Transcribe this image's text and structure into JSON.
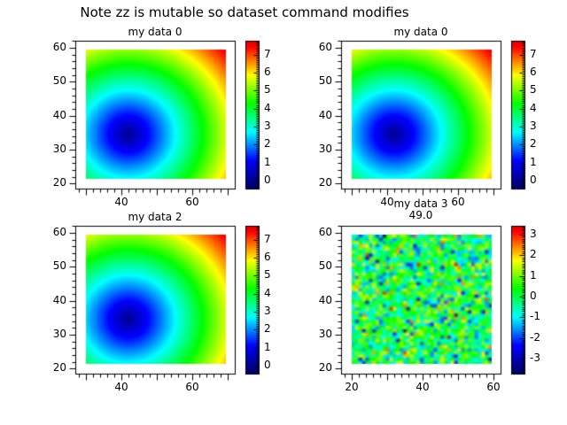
{
  "figure": {
    "title": "Note zz is mutable so dataset command modifies",
    "background": "#ffffff"
  },
  "chart_data": {
    "type": "heatmap",
    "layout": "2x2 grid of image plots, each with its own vertical colorbar, white background, black outward ticks",
    "colormap": {
      "name": "spectrum",
      "stops": [
        "#000064",
        "#0000ff",
        "#00ffff",
        "#00ff00",
        "#ffff00",
        "#ff0000",
        "#640000"
      ],
      "top_fraction": 0.87
    },
    "plots": [
      {
        "id": "plot-top-left",
        "title": "my data 0",
        "x_ticks": {
          "values": [
            30,
            40,
            50,
            60,
            70
          ],
          "labels": [
            "",
            "40",
            "",
            "60",
            ""
          ]
        },
        "y_ticks": {
          "values": [
            60,
            50,
            40,
            30,
            20
          ],
          "labels": [
            "60",
            "50",
            "40",
            "30",
            "20"
          ]
        },
        "x_range": [
          27,
          71.8
        ],
        "y_range": [
          18.4,
          62.1
        ],
        "image": {
          "kind": "radial",
          "center": [
            42,
            34
          ],
          "value_per_unit_distance": 0.2033,
          "x_extent": [
            30,
            69.5
          ],
          "y_extent": [
            20.5,
            59.5
          ]
        },
        "colorbar": {
          "vmin": -0.45,
          "vmax": 7.77,
          "minor_step": 0.1,
          "tick_values": [
            7,
            6,
            5,
            4,
            3,
            2,
            1,
            0
          ],
          "tick_labels": [
            "7",
            "6",
            "5",
            "4",
            "3",
            "2",
            "1",
            "0"
          ]
        }
      },
      {
        "id": "plot-top-right",
        "title": "my data 0",
        "x_ticks": {
          "values": [
            30,
            40,
            50,
            60,
            70
          ],
          "labels": [
            "",
            "40",
            "",
            "60",
            ""
          ]
        },
        "y_ticks": {
          "values": [
            60,
            50,
            40,
            30,
            20
          ],
          "labels": [
            "60",
            "50",
            "40",
            "30",
            "20"
          ]
        },
        "x_range": [
          27,
          71.8
        ],
        "y_range": [
          18.4,
          62.1
        ],
        "image": {
          "kind": "radial",
          "center": [
            42,
            34
          ],
          "value_per_unit_distance": 0.2033,
          "x_extent": [
            30,
            69.5
          ],
          "y_extent": [
            20.5,
            59.5
          ]
        },
        "colorbar": {
          "vmin": -0.45,
          "vmax": 7.77,
          "minor_step": 0.1,
          "tick_values": [
            7,
            6,
            5,
            4,
            3,
            2,
            1,
            0
          ],
          "tick_labels": [
            "7",
            "6",
            "5",
            "4",
            "3",
            "2",
            "1",
            "0"
          ]
        }
      },
      {
        "id": "plot-bottom-left",
        "title": "my data 2",
        "x_ticks": {
          "values": [
            30,
            40,
            50,
            60,
            70
          ],
          "labels": [
            "",
            "40",
            "",
            "60",
            ""
          ]
        },
        "y_ticks": {
          "values": [
            60,
            50,
            40,
            30,
            20
          ],
          "labels": [
            "60",
            "50",
            "40",
            "30",
            "20"
          ]
        },
        "x_range": [
          27,
          71.8
        ],
        "y_range": [
          18.4,
          62.1
        ],
        "image": {
          "kind": "radial",
          "center": [
            42,
            34
          ],
          "value_per_unit_distance": 0.2033,
          "x_extent": [
            30,
            69.5
          ],
          "y_extent": [
            20.5,
            59.5
          ]
        },
        "colorbar": {
          "vmin": -0.45,
          "vmax": 7.77,
          "minor_step": 0.1,
          "tick_values": [
            7,
            6,
            5,
            4,
            3,
            2,
            1,
            0
          ],
          "tick_labels": [
            "7",
            "6",
            "5",
            "4",
            "3",
            "2",
            "1",
            "0"
          ]
        }
      },
      {
        "id": "plot-bottom-right",
        "title": "my data 3",
        "subtitle": "49.0",
        "x_ticks": {
          "values": [
            20,
            30,
            40,
            50,
            60
          ],
          "labels": [
            "20",
            "",
            "40",
            "",
            "60"
          ]
        },
        "y_ticks": {
          "values": [
            60,
            50,
            40,
            30,
            20
          ],
          "labels": [
            "60",
            "50",
            "40",
            "30",
            "20"
          ]
        },
        "x_range": [
          17,
          61.8
        ],
        "y_range": [
          18.4,
          62.1
        ],
        "image": {
          "kind": "noise",
          "distribution": "normal",
          "mean": 0,
          "sigma": 1.1,
          "seed": 42,
          "grid": [
            41,
            41
          ],
          "x_extent": [
            20,
            60
          ],
          "y_extent": [
            20,
            60
          ]
        },
        "colorbar": {
          "vmin": -3.73,
          "vmax": 3.43,
          "minor_step": 0.1,
          "tick_values": [
            3,
            2,
            1,
            0,
            -1,
            -2,
            -3
          ],
          "tick_labels": [
            "3",
            "2",
            "1",
            "0",
            "-1",
            "-2",
            "-3"
          ]
        }
      }
    ]
  }
}
